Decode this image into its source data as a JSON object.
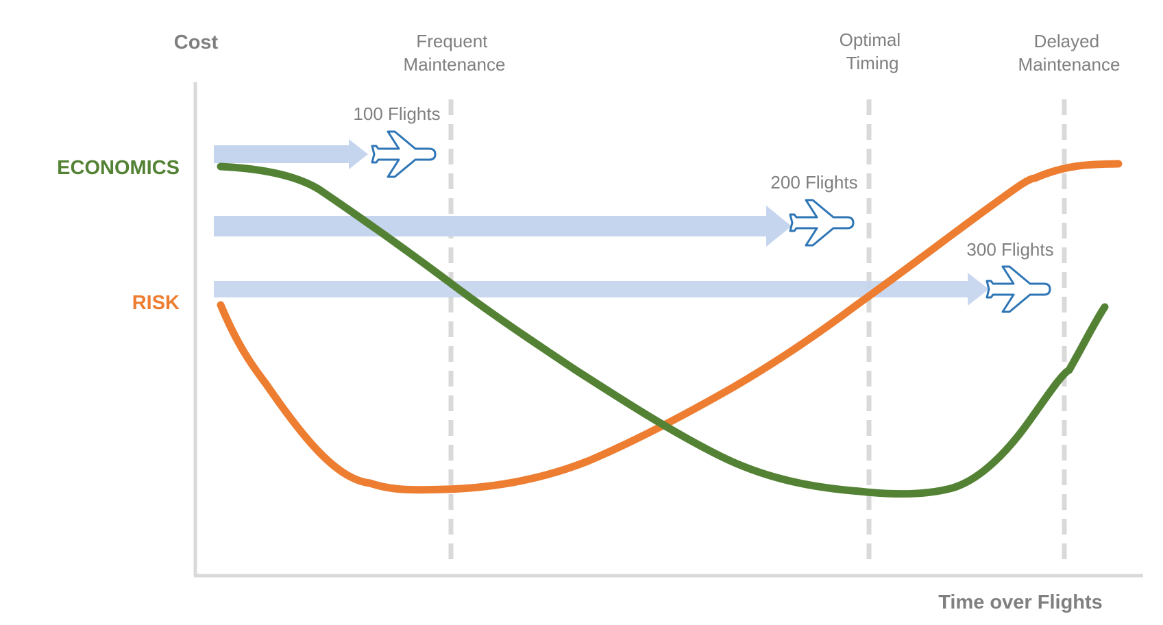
{
  "chart": {
    "y_axis_title": "Cost",
    "x_axis_title": "Time over Flights",
    "colors": {
      "axis": "#d9d9d9",
      "economics": "#548235",
      "risk": "#ed7d31",
      "arrow": "#c5d5ee",
      "plane": "#2e75b6",
      "muted_text": "#7f7f7f"
    }
  },
  "series": [
    {
      "key": "economics",
      "label": "ECONOMICS"
    },
    {
      "key": "risk",
      "label": "RISK"
    }
  ],
  "markers": [
    {
      "key": "frequent",
      "lines": [
        "Frequent",
        "Maintenance"
      ]
    },
    {
      "key": "optimal",
      "lines": [
        "Optimal",
        "Timing"
      ]
    },
    {
      "key": "delayed",
      "lines": [
        "Delayed",
        "Maintenance"
      ]
    }
  ],
  "flights": [
    {
      "key": "f100",
      "label": "100 Flights",
      "icon": "airplane-icon"
    },
    {
      "key": "f200",
      "label": "200 Flights",
      "icon": "airplane-icon"
    },
    {
      "key": "f300",
      "label": "300 Flights",
      "icon": "airplane-icon"
    }
  ]
}
